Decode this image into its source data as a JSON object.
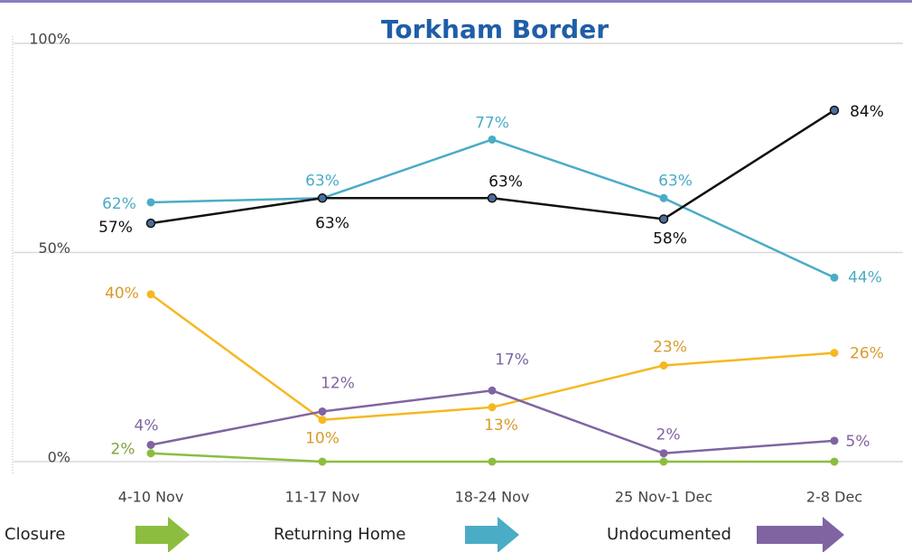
{
  "chart_data": {
    "type": "line",
    "title": "Torkham Border",
    "categories": [
      "4-10 Nov",
      "11-17 Nov",
      "18-24 Nov",
      "25 Nov-1 Dec",
      "2-8 Dec"
    ],
    "ylim": [
      0,
      100
    ],
    "yticks": [
      {
        "value": 0,
        "label": "0%"
      },
      {
        "value": 50,
        "label": "50%"
      },
      {
        "value": 100,
        "label": "100%"
      }
    ],
    "grid": true,
    "series": [
      {
        "name": "Returning Home",
        "color": "#4bacc6",
        "values": [
          62,
          63,
          77,
          63,
          44
        ],
        "value_labels": [
          "62%",
          "63%",
          "77%",
          "63%",
          "44%"
        ]
      },
      {
        "color": "#111111",
        "values": [
          57,
          63,
          63,
          58,
          84
        ],
        "value_labels": [
          "57%",
          "63%",
          "63%",
          "58%",
          "84%"
        ]
      },
      {
        "color": "#f5b820",
        "values": [
          40,
          10,
          13,
          23,
          26
        ],
        "value_labels": [
          "40%",
          "10%",
          "13%",
          "23%",
          "26%"
        ]
      },
      {
        "name": "Undocumented",
        "color": "#8064a2",
        "values": [
          4,
          12,
          17,
          2,
          5
        ],
        "value_labels": [
          "4%",
          "12%",
          "17%",
          "2%",
          "5%"
        ]
      },
      {
        "name": "Closure",
        "color": "#8cbd3f",
        "values": [
          2,
          0,
          0,
          0,
          0
        ],
        "value_labels": [
          "2%",
          null,
          null,
          null,
          null
        ]
      }
    ]
  }
}
